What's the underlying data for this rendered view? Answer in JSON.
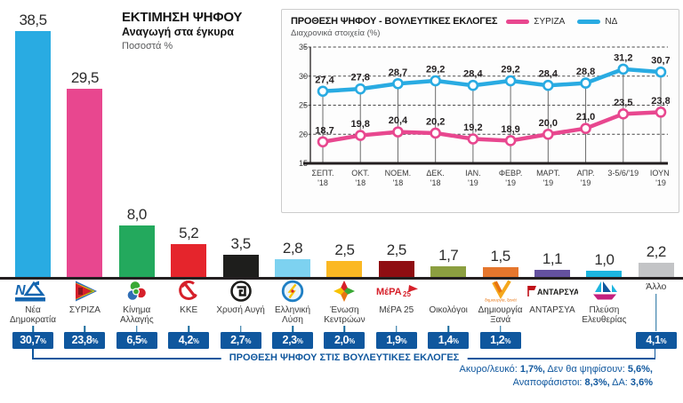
{
  "bar_chart": {
    "title": "ΕΚΤΙΜΗΣΗ ΨΗΦΟΥ",
    "subtitle": "Αναγωγή στα έγκυρα",
    "unit_label": "Ποσοστά %"
  },
  "line_chart": {
    "title": "ΠΡΟΘΕΣΗ ΨΗΦΟΥ - ΒΟΥΛΕΥΤΙΚΕΣ ΕΚΛΟΓΕΣ",
    "subtitle": "Διαχρονικά στοιχεία (%)"
  },
  "footer": {
    "bracket_label": "ΠΡΟΘΕΣΗ ΨΗΦΟΥ ΣΤΙΣ ΒΟΥΛΕΥΤΙΚΕΣ ΕΚΛΟΓΕΣ",
    "notes_line1": [
      {
        "text": "Ακυρο/λευκό: ",
        "bold": false
      },
      {
        "text": "1,7%,",
        "bold": true
      },
      {
        "text": " Δεν θα ψηφίσουν: ",
        "bold": false
      },
      {
        "text": "5,6%,",
        "bold": true
      }
    ],
    "notes_line2": [
      {
        "text": "Αναποφάσιστοι: ",
        "bold": false
      },
      {
        "text": "8,3%,",
        "bold": true
      },
      {
        "text": " ΔΑ: ",
        "bold": false
      },
      {
        "text": "3,6%",
        "bold": true
      }
    ]
  },
  "colors": {
    "badge_blue": "#0f579e",
    "connector_teal": "#17699b",
    "axis_black": "#231f20",
    "syriza_pink": "#e8478f",
    "nd_blue": "#29abe2"
  },
  "chart_data": [
    {
      "type": "bar",
      "title": "ΕΚΤΙΜΗΣΗ ΨΗΦΟΥ",
      "subtitle": "Αναγωγή στα έγκυρα",
      "unit": "Ποσοστά %",
      "ylabel": "",
      "xlabel": "",
      "grid": false,
      "badge_row_label": "ΠΡΟΘΕΣΗ ΨΗΦΟΥ ΣΤΙΣ ΒΟΥΛΕΥΤΙΚΕΣ ΕΚΛΟΓΕΣ",
      "parties": [
        {
          "name": "Νέα Δημοκρατία",
          "value": 38.5,
          "value_label": "38,5",
          "color": "#29abe2",
          "badge_label": "30,7",
          "logo": "nd"
        },
        {
          "name": "ΣΥΡΙΖΑ",
          "value": 29.5,
          "value_label": "29,5",
          "color": "#e8478f",
          "badge_label": "23,8",
          "logo": "syriza"
        },
        {
          "name": "Κίνημα Αλλαγής",
          "value": 8.0,
          "value_label": "8,0",
          "color": "#23a95d",
          "badge_label": "6,5",
          "logo": "kinal"
        },
        {
          "name": "ΚΚΕ",
          "value": 5.2,
          "value_label": "5,2",
          "color": "#e5252c",
          "badge_label": "4,2",
          "logo": "kke"
        },
        {
          "name": "Χρυσή Αυγή",
          "value": 3.5,
          "value_label": "3,5",
          "color": "#1e1e1c",
          "badge_label": "2,7",
          "logo": "xa"
        },
        {
          "name": "Ελληνική Λύση",
          "value": 2.8,
          "value_label": "2,8",
          "color": "#7dd2f0",
          "badge_label": "2,3",
          "logo": "el"
        },
        {
          "name": "Ένωση Κεντρώων",
          "value": 2.5,
          "value_label": "2,5",
          "color": "#fbb823",
          "badge_label": "2,0",
          "logo": "ek"
        },
        {
          "name": "ΜέΡΑ 25",
          "value": 2.5,
          "value_label": "2,5",
          "color": "#8f0d12",
          "badge_label": "1,9",
          "logo": "mera"
        },
        {
          "name": "Οικολόγοι",
          "value": 1.7,
          "value_label": "1,7",
          "color": "#8c9f40",
          "badge_label": "1,4",
          "logo": "none"
        },
        {
          "name": "Δημιουργία Ξανά",
          "value": 1.5,
          "value_label": "1,5",
          "color": "#e5762d",
          "badge_label": "1,2",
          "logo": "dx"
        },
        {
          "name": "ΑΝΤΑΡΣΥΑ",
          "value": 1.1,
          "value_label": "1,1",
          "color": "#64519f",
          "badge_label": null,
          "logo": "ant"
        },
        {
          "name": "Πλεύση Ελευθερίας",
          "value": 1.0,
          "value_label": "1,0",
          "color": "#1cb5df",
          "badge_label": null,
          "logo": "pe"
        },
        {
          "name": "Άλλο",
          "value": 2.2,
          "value_label": "2,2",
          "color": "#c3c4c6",
          "badge_label": "4,1",
          "logo": "text-only"
        }
      ]
    },
    {
      "type": "line",
      "title": "ΠΡΟΘΕΣΗ ΨΗΦΟΥ - ΒΟΥΛΕΥΤΙΚΕΣ ΕΚΛΟΓΕΣ",
      "subtitle": "Διαχρονικά στοιχεία (%)",
      "legend_position": "top",
      "grid": "horizontal dashed",
      "ylim": [
        15,
        35
      ],
      "yticks": [
        15,
        20,
        25,
        30,
        35
      ],
      "x_labels": [
        [
          "ΣΕΠΤ.",
          "'18"
        ],
        [
          "ΟΚΤ.",
          "'18"
        ],
        [
          "ΝΟΕΜ.",
          "'18"
        ],
        [
          "ΔΕΚ.",
          "'18"
        ],
        [
          "ΙΑΝ.",
          "'19"
        ],
        [
          "ΦΕΒΡ.",
          "'19"
        ],
        [
          "ΜΑΡΤ.",
          "'19"
        ],
        [
          "ΑΠΡ.",
          "'19"
        ],
        [
          "3-5/6/'19",
          ""
        ],
        [
          "ΙΟΥΝ.",
          "'19"
        ]
      ],
      "series": [
        {
          "name": "ΣΥΡΙΖΑ",
          "color": "#e8478f",
          "values": [
            18.7,
            19.8,
            20.4,
            20.2,
            19.2,
            18.9,
            20.0,
            21.0,
            23.5,
            23.8
          ],
          "labels": [
            "18,7",
            "19,8",
            "20,4",
            "20,2",
            "19,2",
            "18,9",
            "20,0",
            "21,0",
            "23,5",
            "23,8"
          ]
        },
        {
          "name": "ΝΔ",
          "color": "#29abe2",
          "values": [
            27.4,
            27.8,
            28.7,
            29.2,
            28.4,
            29.2,
            28.4,
            28.8,
            31.2,
            30.7
          ],
          "labels": [
            "27,4",
            "27,8",
            "28,7",
            "29,2",
            "28,4",
            "29,2",
            "28,4",
            "28,8",
            "31,2",
            "30,7"
          ]
        }
      ]
    }
  ]
}
